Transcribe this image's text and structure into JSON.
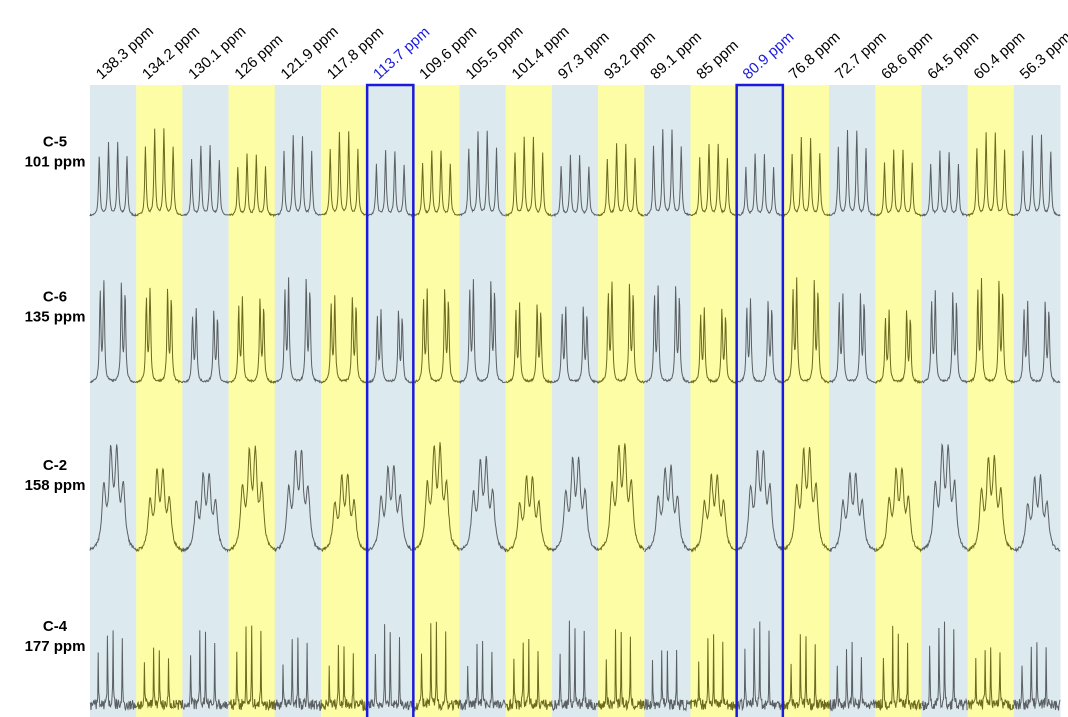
{
  "columns": [
    {
      "label": "138.3 ppm",
      "highlighted": false
    },
    {
      "label": "134.2 ppm",
      "highlighted": false
    },
    {
      "label": "130.1 ppm",
      "highlighted": false
    },
    {
      "label": "126 ppm",
      "highlighted": false
    },
    {
      "label": "121.9 ppm",
      "highlighted": false
    },
    {
      "label": "117.8 ppm",
      "highlighted": false
    },
    {
      "label": "113.7 ppm",
      "highlighted": true
    },
    {
      "label": "109.6 ppm",
      "highlighted": false
    },
    {
      "label": "105.5 ppm",
      "highlighted": false
    },
    {
      "label": "101.4 ppm",
      "highlighted": false
    },
    {
      "label": "97.3 ppm",
      "highlighted": false
    },
    {
      "label": "93.2 ppm",
      "highlighted": false
    },
    {
      "label": "89.1 ppm",
      "highlighted": false
    },
    {
      "label": "85 ppm",
      "highlighted": false
    },
    {
      "label": "80.9 ppm",
      "highlighted": true
    },
    {
      "label": "76.8 ppm",
      "highlighted": false
    },
    {
      "label": "72.7 ppm",
      "highlighted": false
    },
    {
      "label": "68.6 ppm",
      "highlighted": false
    },
    {
      "label": "64.5 ppm",
      "highlighted": false
    },
    {
      "label": "60.4 ppm",
      "highlighted": false
    },
    {
      "label": "56.3 ppm",
      "highlighted": false
    }
  ],
  "rows": [
    {
      "name": "C-5",
      "shift": "101 ppm"
    },
    {
      "name": "C-6",
      "shift": "135 ppm"
    },
    {
      "name": "C-2",
      "shift": "158 ppm"
    },
    {
      "name": "C-4",
      "shift": "177 ppm"
    }
  ]
}
